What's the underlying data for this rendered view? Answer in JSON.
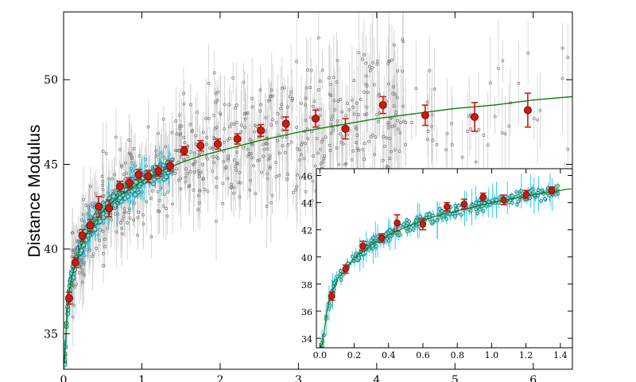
{
  "chart_data": [
    {
      "type": "scatter",
      "role": "main",
      "title": "",
      "xlabel": "",
      "ylabel": "Distance Modulus",
      "xlim": [
        0,
        6.5
      ],
      "ylim": [
        32.9,
        54
      ],
      "x_ticks": [
        0,
        1,
        2,
        3,
        4,
        5,
        6
      ],
      "y_ticks": [
        35,
        40,
        45,
        50
      ],
      "grid": false,
      "legend": "none",
      "colors": {
        "gray_points": "#777777",
        "gray_errorbars": "#cfcfcf",
        "cyan_points": "#7fe0d8",
        "cyan_edge": "#16676b",
        "cyan_errorbars": "#1ec8e6",
        "binned_points": "#cc1a10",
        "binned_edge": "#6e0e08",
        "model_curve": "#0d7f0d"
      },
      "binned_series": {
        "x": [
          0.07,
          0.15,
          0.24,
          0.34,
          0.45,
          0.58,
          0.72,
          0.84,
          0.96,
          1.08,
          1.21,
          1.36,
          1.54,
          1.75,
          1.97,
          2.22,
          2.52,
          2.84,
          3.22,
          3.6,
          4.08,
          4.62,
          5.25,
          5.93
        ],
        "y": [
          37.1,
          39.2,
          40.8,
          41.4,
          42.5,
          42.4,
          43.7,
          43.9,
          44.4,
          44.3,
          44.6,
          44.9,
          45.8,
          46.1,
          46.2,
          46.5,
          47.0,
          47.4,
          47.7,
          47.1,
          48.5,
          47.9,
          47.8,
          48.2
        ],
        "yerr": [
          0.35,
          0.3,
          0.35,
          0.35,
          0.6,
          0.5,
          0.3,
          0.3,
          0.3,
          0.35,
          0.3,
          0.3,
          0.25,
          0.3,
          0.3,
          0.3,
          0.35,
          0.4,
          0.5,
          0.6,
          0.5,
          0.6,
          0.85,
          1.0
        ]
      },
      "model_curve": {
        "x": [
          0.01,
          0.05,
          0.1,
          0.2,
          0.3,
          0.4,
          0.5,
          0.6,
          0.7,
          0.8,
          0.9,
          1.0,
          1.25,
          1.5,
          1.75,
          2.0,
          2.5,
          3.0,
          3.5,
          4.0,
          4.5,
          5.0,
          5.5,
          6.0,
          6.5
        ],
        "y": [
          33.2,
          36.7,
          38.3,
          39.9,
          40.9,
          41.6,
          42.2,
          42.7,
          43.1,
          43.4,
          43.7,
          44.0,
          44.6,
          45.1,
          45.5,
          45.8,
          46.4,
          46.9,
          47.3,
          47.7,
          48.0,
          48.3,
          48.5,
          48.8,
          49.0
        ]
      }
    },
    {
      "type": "scatter",
      "role": "inset",
      "title": "",
      "xlabel": "",
      "ylabel": "",
      "xlim": [
        -0.02,
        1.47
      ],
      "ylim": [
        33.3,
        46.5
      ],
      "x_ticks": [
        0.0,
        0.2,
        0.4,
        0.6,
        0.8,
        1.0,
        1.2,
        1.4
      ],
      "x_tick_labels": [
        "0.0",
        "0.2",
        "0.4",
        "0.6",
        "0.8",
        "1.0",
        "1.2",
        "1.4"
      ],
      "y_ticks": [
        34,
        36,
        38,
        40,
        42,
        44,
        46
      ],
      "grid": false,
      "legend": "none",
      "binned_series": {
        "x": [
          0.07,
          0.15,
          0.25,
          0.36,
          0.45,
          0.6,
          0.74,
          0.84,
          0.95,
          1.07,
          1.2,
          1.35
        ],
        "y": [
          37.1,
          39.1,
          40.8,
          41.4,
          42.5,
          42.4,
          43.7,
          43.9,
          44.4,
          44.2,
          44.6,
          44.9
        ],
        "yerr": [
          0.3,
          0.3,
          0.35,
          0.3,
          0.6,
          0.4,
          0.3,
          0.35,
          0.3,
          0.35,
          0.3,
          0.25
        ]
      }
    }
  ]
}
